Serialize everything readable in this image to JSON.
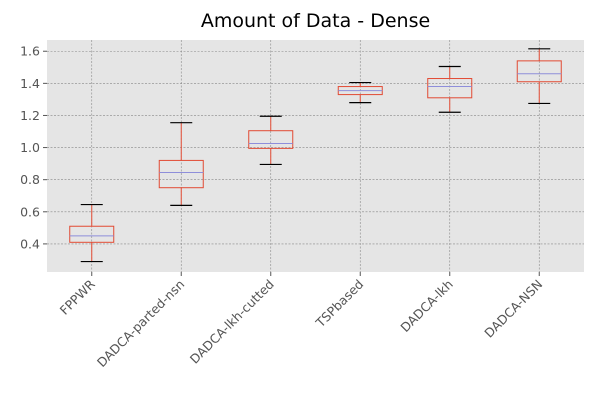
{
  "chart_data": {
    "type": "box",
    "title": "Amount of Data - Dense",
    "xlabel": "",
    "ylabel": "",
    "categories": [
      "FPPWR",
      "DADCA-parted-nsn",
      "DADCA-lkh-cutted",
      "TSPbased",
      "DADCA-lkh",
      "DADCA-NSN"
    ],
    "boxes": [
      {
        "whisker_low": 0.29,
        "q1": 0.41,
        "median": 0.45,
        "q3": 0.51,
        "whisker_high": 0.645
      },
      {
        "whisker_low": 0.64,
        "q1": 0.75,
        "median": 0.845,
        "q3": 0.92,
        "whisker_high": 1.155
      },
      {
        "whisker_low": 0.895,
        "q1": 0.995,
        "median": 1.025,
        "q3": 1.105,
        "whisker_high": 1.195
      },
      {
        "whisker_low": 1.28,
        "q1": 1.33,
        "median": 1.355,
        "q3": 1.38,
        "whisker_high": 1.405
      },
      {
        "whisker_low": 1.22,
        "q1": 1.31,
        "median": 1.38,
        "q3": 1.43,
        "whisker_high": 1.505
      },
      {
        "whisker_low": 1.275,
        "q1": 1.41,
        "median": 1.46,
        "q3": 1.54,
        "whisker_high": 1.615
      }
    ],
    "yticks": [
      0.4,
      0.6,
      0.8,
      1.0,
      1.2,
      1.4,
      1.6
    ],
    "ytick_labels": [
      "0.4",
      "0.6",
      "0.8",
      "1.0",
      "1.2",
      "1.4",
      "1.6"
    ],
    "ylim": [
      0.225,
      1.67
    ],
    "grid": true,
    "colors": {
      "plot_background": "#e5e5e5",
      "grid": "#888888",
      "box": "#e24a33",
      "median": "#8e8eda",
      "whisker_cap": "#000000",
      "tick": "#555555"
    }
  }
}
